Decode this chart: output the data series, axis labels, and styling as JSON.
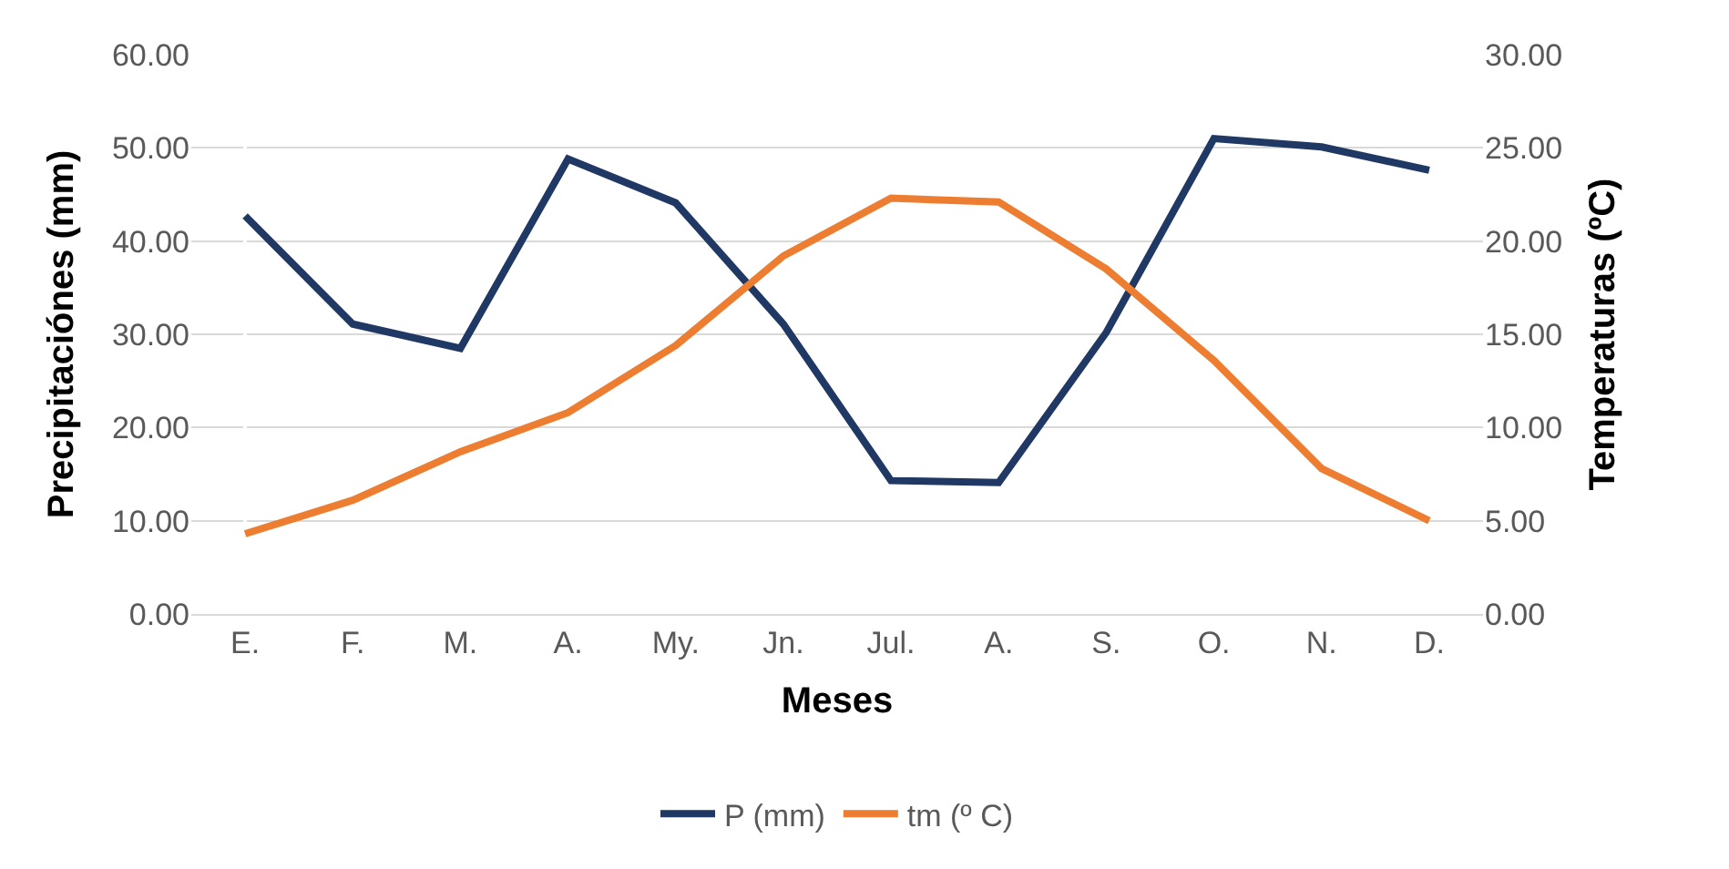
{
  "chart_data": {
    "type": "line",
    "xlabel": "Meses",
    "ylabel": "Precipitaciónes (mm)",
    "y2label": "Temperaturas (ºC)",
    "categories": [
      "E.",
      "F.",
      "M.",
      "A.",
      "My.",
      "Jn.",
      "Jul.",
      "A.",
      "S.",
      "O.",
      "N.",
      "D."
    ],
    "series": [
      {
        "name": "P (mm)",
        "color": "#203864",
        "values": [
          42.7,
          31.1,
          28.5,
          48.8,
          44.1,
          31.1,
          14.3,
          14.1,
          30.2,
          51.0,
          50.1,
          47.6
        ]
      },
      {
        "name": "tm (º C)",
        "color": "#ed7d31",
        "axis": "y2",
        "values": [
          4.3,
          6.1,
          8.7,
          10.8,
          14.4,
          19.2,
          22.3,
          22.1,
          18.5,
          13.6,
          7.8,
          5.0
        ]
      }
    ],
    "ylim": [
      0,
      60
    ],
    "yticks": [
      {
        "value": 0,
        "label": "0.00"
      },
      {
        "value": 10,
        "label": "10.00"
      },
      {
        "value": 20,
        "label": "20.00"
      },
      {
        "value": 30,
        "label": "30.00"
      },
      {
        "value": 40,
        "label": "40.00"
      },
      {
        "value": 50,
        "label": "50.00"
      },
      {
        "value": 60,
        "label": "60.00"
      }
    ],
    "y2lim": [
      0,
      30
    ],
    "y2ticks": [
      {
        "value": 0,
        "label": "0.00"
      },
      {
        "value": 5,
        "label": "5.00"
      },
      {
        "value": 10,
        "label": "10.00"
      },
      {
        "value": 15,
        "label": "15.00"
      },
      {
        "value": 20,
        "label": "20.00"
      },
      {
        "value": 25,
        "label": "25.00"
      },
      {
        "value": 30,
        "label": "30.00"
      }
    ],
    "grid": "y",
    "legend": "bottom",
    "marker": "none",
    "line_style": "solid"
  }
}
